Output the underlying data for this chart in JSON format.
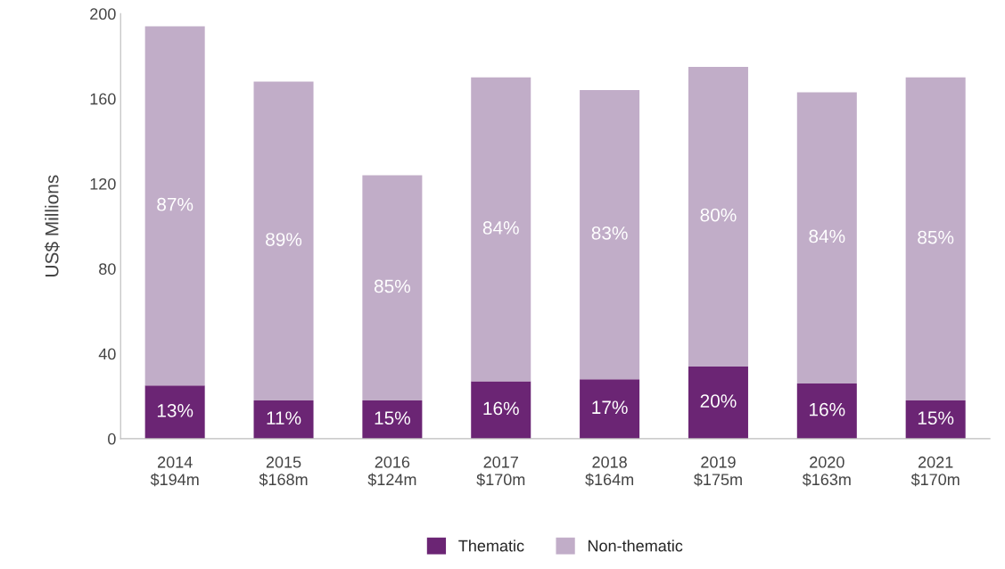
{
  "chart_data": {
    "type": "bar",
    "ylabel": "US$ Millions",
    "stacked": true,
    "categories": [
      "2014\n$194m",
      "2015\n$168m",
      "2016\n$124m",
      "2017\n$170m",
      "2018\n$164m",
      "2019\n$175m",
      "2020\n$163m",
      "2021\n$170m"
    ],
    "series": [
      {
        "name": "Thematic",
        "color": "#6b2574",
        "values": [
          25,
          18,
          18,
          27,
          28,
          34,
          26,
          18
        ]
      },
      {
        "name": "Non-thematic",
        "color": "#c1adc8",
        "values": [
          169,
          150,
          106,
          143,
          136,
          141,
          137,
          152
        ]
      }
    ],
    "annotations": [
      "13%",
      "87%",
      "11%",
      "89%",
      "15%",
      "85%",
      "16%",
      "84%",
      "17%",
      "83%",
      "20%",
      "80%",
      "16%",
      "84%",
      "15%",
      "85%"
    ],
    "ylim": [
      0,
      200
    ],
    "yticks": [
      0,
      40,
      80,
      120,
      160,
      200
    ],
    "grid": false,
    "legend": "bottom"
  }
}
